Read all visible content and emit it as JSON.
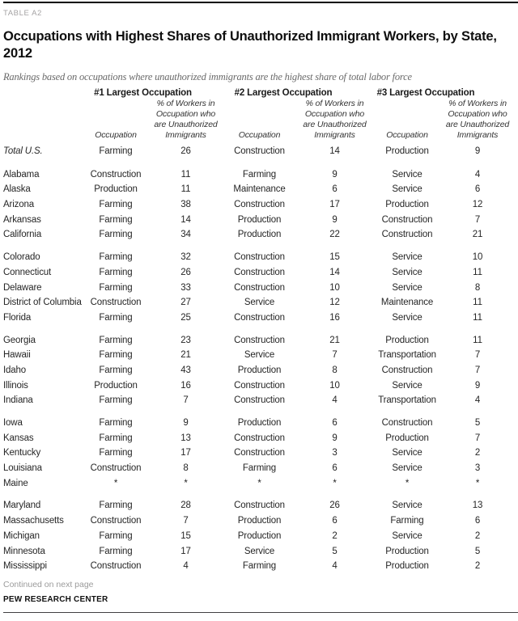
{
  "page": {
    "table_label": "TABLE A2",
    "title_lines": [
      "Occupations with Highest Shares of Unauthorized Immigrant Workers, by State,",
      "2012"
    ],
    "subtitle": "Rankings based on occupations where unauthorized immigrants are the highest share of total labor force",
    "continued_note": "Continued on next page",
    "source": "PEW RESEARCH CENTER"
  },
  "table": {
    "group_headers": [
      "#1 Largest Occupation",
      "#2 Largest Occupation",
      "#3 Largest Occupation"
    ],
    "sub_headers": {
      "occupation": "Occupation",
      "pct": "% of Workers in Occupation who are Unauthorized Immigrants"
    },
    "total_row": {
      "label": "Total U.S.",
      "cells": [
        "Farming",
        "26",
        "Construction",
        "14",
        "Production",
        "9"
      ]
    },
    "groups": [
      [
        {
          "label": "Alabama",
          "cells": [
            "Construction",
            "11",
            "Farming",
            "9",
            "Service",
            "4"
          ]
        },
        {
          "label": "Alaska",
          "cells": [
            "Production",
            "11",
            "Maintenance",
            "6",
            "Service",
            "6"
          ]
        },
        {
          "label": "Arizona",
          "cells": [
            "Farming",
            "38",
            "Construction",
            "17",
            "Production",
            "12"
          ]
        },
        {
          "label": "Arkansas",
          "cells": [
            "Farming",
            "14",
            "Production",
            "9",
            "Construction",
            "7"
          ]
        },
        {
          "label": "California",
          "cells": [
            "Farming",
            "34",
            "Production",
            "22",
            "Construction",
            "21"
          ]
        }
      ],
      [
        {
          "label": "Colorado",
          "cells": [
            "Farming",
            "32",
            "Construction",
            "15",
            "Service",
            "10"
          ]
        },
        {
          "label": "Connecticut",
          "cells": [
            "Farming",
            "26",
            "Construction",
            "14",
            "Service",
            "11"
          ]
        },
        {
          "label": "Delaware",
          "cells": [
            "Farming",
            "33",
            "Construction",
            "10",
            "Service",
            "8"
          ]
        },
        {
          "label": "District of Columbia",
          "cells": [
            "Construction",
            "27",
            "Service",
            "12",
            "Maintenance",
            "11"
          ]
        },
        {
          "label": "Florida",
          "cells": [
            "Farming",
            "25",
            "Construction",
            "16",
            "Service",
            "11"
          ]
        }
      ],
      [
        {
          "label": "Georgia",
          "cells": [
            "Farming",
            "23",
            "Construction",
            "21",
            "Production",
            "11"
          ]
        },
        {
          "label": "Hawaii",
          "cells": [
            "Farming",
            "21",
            "Service",
            "7",
            "Transportation",
            "7"
          ]
        },
        {
          "label": "Idaho",
          "cells": [
            "Farming",
            "43",
            "Production",
            "8",
            "Construction",
            "7"
          ]
        },
        {
          "label": "Illinois",
          "cells": [
            "Production",
            "16",
            "Construction",
            "10",
            "Service",
            "9"
          ]
        },
        {
          "label": "Indiana",
          "cells": [
            "Farming",
            "7",
            "Construction",
            "4",
            "Transportation",
            "4"
          ]
        }
      ],
      [
        {
          "label": "Iowa",
          "cells": [
            "Farming",
            "9",
            "Production",
            "6",
            "Construction",
            "5"
          ]
        },
        {
          "label": "Kansas",
          "cells": [
            "Farming",
            "13",
            "Construction",
            "9",
            "Production",
            "7"
          ]
        },
        {
          "label": "Kentucky",
          "cells": [
            "Farming",
            "17",
            "Construction",
            "3",
            "Service",
            "2"
          ]
        },
        {
          "label": "Louisiana",
          "cells": [
            "Construction",
            "8",
            "Farming",
            "6",
            "Service",
            "3"
          ]
        },
        {
          "label": "Maine",
          "cells": [
            "*",
            "*",
            "*",
            "*",
            "*",
            "*"
          ]
        }
      ],
      [
        {
          "label": "Maryland",
          "cells": [
            "Farming",
            "28",
            "Construction",
            "26",
            "Service",
            "13"
          ]
        },
        {
          "label": "Massachusetts",
          "cells": [
            "Construction",
            "7",
            "Production",
            "6",
            "Farming",
            "6"
          ]
        },
        {
          "label": "Michigan",
          "cells": [
            "Farming",
            "15",
            "Production",
            "2",
            "Service",
            "2"
          ]
        },
        {
          "label": "Minnesota",
          "cells": [
            "Farming",
            "17",
            "Service",
            "5",
            "Production",
            "5"
          ]
        },
        {
          "label": "Mississippi",
          "cells": [
            "Construction",
            "4",
            "Farming",
            "4",
            "Production",
            "2"
          ]
        }
      ]
    ]
  }
}
